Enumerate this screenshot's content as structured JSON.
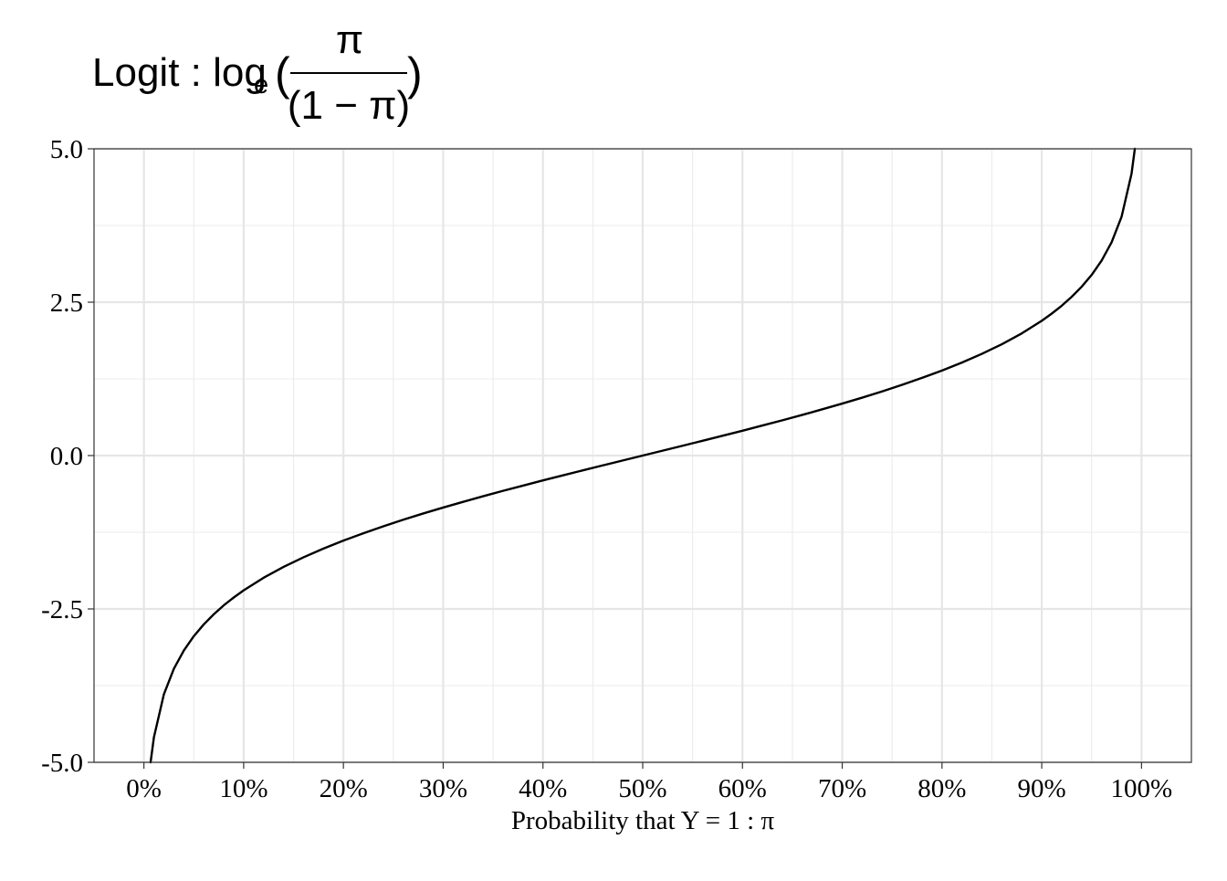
{
  "chart_data": {
    "type": "line",
    "title": {
      "prefix": "Logit : log",
      "subscript": "e",
      "open_paren": "(",
      "numerator": "π",
      "denominator": "(1 − π)",
      "close_paren": ")"
    },
    "xlabel": "Probability that Y = 1 : π",
    "ylabel": "",
    "xlim": [
      -0.05,
      1.05
    ],
    "ylim": [
      -5.0,
      5.0
    ],
    "x_ticks": [
      0,
      0.1,
      0.2,
      0.3,
      0.4,
      0.5,
      0.6,
      0.7,
      0.8,
      0.9,
      1.0
    ],
    "x_tick_labels": [
      "0%",
      "10%",
      "20%",
      "30%",
      "40%",
      "50%",
      "60%",
      "70%",
      "80%",
      "90%",
      "100%"
    ],
    "y_ticks": [
      -5.0,
      -2.5,
      0.0,
      2.5,
      5.0
    ],
    "y_tick_labels": [
      "-5.0",
      "-2.5",
      "0.0",
      "2.5",
      "5.0"
    ],
    "grid": true,
    "series": [
      {
        "x": [
          0.00669,
          0.01,
          0.02,
          0.03,
          0.04,
          0.05,
          0.06,
          0.07,
          0.08,
          0.09,
          0.1,
          0.12,
          0.14,
          0.16,
          0.18,
          0.2,
          0.22,
          0.24,
          0.26,
          0.28,
          0.3,
          0.32,
          0.34,
          0.36,
          0.38,
          0.4,
          0.42,
          0.44,
          0.46,
          0.48,
          0.5,
          0.52,
          0.54,
          0.56,
          0.58,
          0.6,
          0.62,
          0.64,
          0.66,
          0.68,
          0.7,
          0.72,
          0.74,
          0.76,
          0.78,
          0.8,
          0.82,
          0.84,
          0.86,
          0.88,
          0.9,
          0.91,
          0.92,
          0.93,
          0.94,
          0.95,
          0.96,
          0.97,
          0.98,
          0.99,
          0.99331
        ],
        "y": [
          -5.0,
          -4.595,
          -3.892,
          -3.476,
          -3.178,
          -2.944,
          -2.752,
          -2.587,
          -2.442,
          -2.314,
          -2.197,
          -1.992,
          -1.815,
          -1.658,
          -1.516,
          -1.386,
          -1.266,
          -1.153,
          -1.046,
          -0.944,
          -0.847,
          -0.754,
          -0.663,
          -0.575,
          -0.49,
          -0.405,
          -0.323,
          -0.241,
          -0.16,
          -0.08,
          0.0,
          0.08,
          0.16,
          0.241,
          0.323,
          0.405,
          0.49,
          0.575,
          0.663,
          0.754,
          0.847,
          0.944,
          1.046,
          1.153,
          1.266,
          1.386,
          1.516,
          1.658,
          1.815,
          1.992,
          2.197,
          2.314,
          2.442,
          2.587,
          2.752,
          2.944,
          3.178,
          3.476,
          3.892,
          4.595,
          5.0
        ],
        "color": "#000000"
      }
    ]
  }
}
